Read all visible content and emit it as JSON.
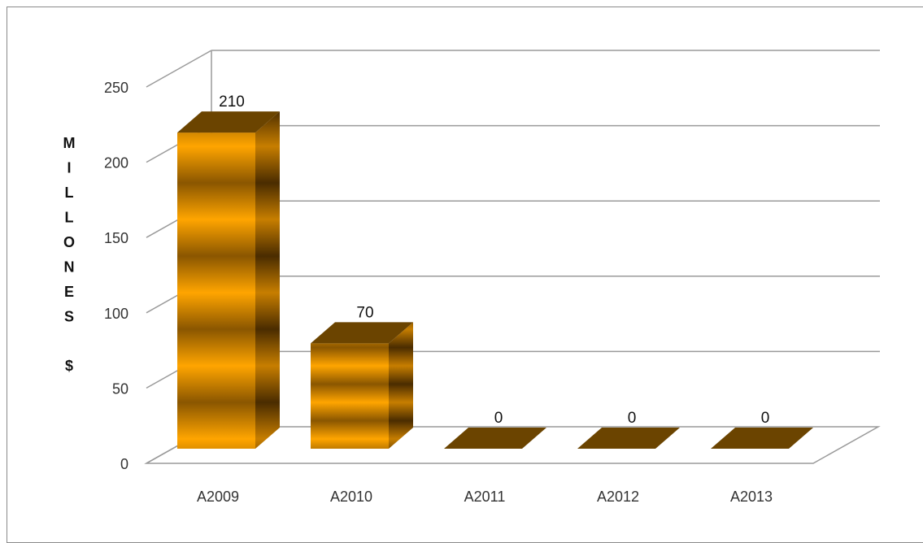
{
  "chart_data": {
    "type": "bar",
    "style": "3d-column",
    "categories": [
      "A2009",
      "A2010",
      "A2011",
      "A2012",
      "A2013"
    ],
    "values": [
      210,
      70,
      0,
      0,
      0
    ],
    "data_labels": [
      "210",
      "70",
      "0",
      "0",
      "0"
    ],
    "title": "",
    "xlabel": "",
    "ylabel": "MILLONES $",
    "ylabel_letters": [
      "M",
      "I",
      "L",
      "L",
      "O",
      "N",
      "E",
      "S",
      "$"
    ],
    "ylim": [
      0,
      250
    ],
    "yticks": [
      "0",
      "50",
      "100",
      "150",
      "200",
      "250"
    ],
    "grid": true,
    "legend": "none",
    "colors": {
      "bar_light": "#FFA500",
      "bar_dark": "#7A4A00",
      "bar_top": "#6B4400",
      "grid": "#9a9a9a"
    }
  }
}
